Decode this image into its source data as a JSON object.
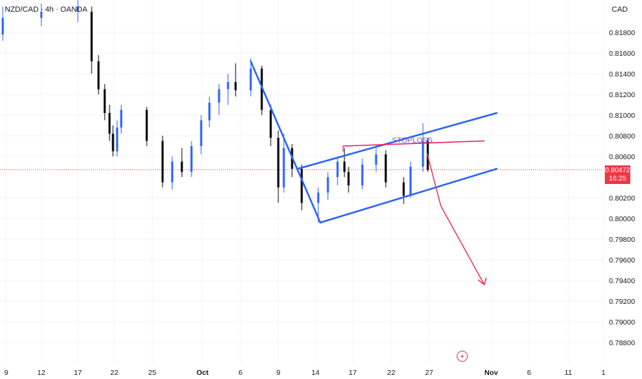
{
  "header": {
    "symbol": "NZD/CAD · 4h · OANDA",
    "currency": "CAD"
  },
  "price_badge": {
    "price": "0.80472",
    "countdown": "16:25"
  },
  "annotation": {
    "stoploss_label": "STOPLOSS"
  },
  "colors": {
    "up": "#2962ff",
    "down": "#000000",
    "channel": "#2962ff",
    "stoploss": "#e91e63",
    "arrow": "#e53950",
    "price_line": "#f23645",
    "grid": "#f0f3fa"
  },
  "icons": {
    "flag": "canada-flag-icon"
  },
  "chart_data": {
    "type": "candlestick",
    "title": "NZD/CAD · 4h · OANDA",
    "y_axis": {
      "ticks": [
        "0.81800",
        "0.81600",
        "0.81400",
        "0.81200",
        "0.81000",
        "0.80800",
        "0.80600",
        "0.80200",
        "0.80000",
        "0.79800",
        "0.79600",
        "0.79400",
        "0.79200",
        "0.79000",
        "0.78800"
      ],
      "range": [
        0.7872,
        0.8212
      ],
      "unit": "CAD"
    },
    "x_axis": {
      "ticks": [
        "9",
        "12",
        "17",
        "22",
        "25",
        "Oct",
        "6",
        "9",
        "14",
        "17",
        "22",
        "27",
        "Nov",
        "6",
        "11",
        "1"
      ]
    },
    "last_price": 0.80472,
    "candles": [
      {
        "x": "09-08",
        "o": 0.8178,
        "h": 0.8205,
        "l": 0.8172,
        "c": 0.8194
      },
      {
        "x": "09-12",
        "o": 0.8194,
        "h": 0.8208,
        "l": 0.8186,
        "c": 0.82
      },
      {
        "x": "09-17",
        "o": 0.82,
        "h": 0.8212,
        "l": 0.819,
        "c": 0.8205
      },
      {
        "x": "09-18",
        "o": 0.82,
        "h": 0.8205,
        "l": 0.814,
        "c": 0.8152
      },
      {
        "x": "09-18b",
        "o": 0.8152,
        "h": 0.8158,
        "l": 0.812,
        "c": 0.8125
      },
      {
        "x": "09-19",
        "o": 0.8125,
        "h": 0.813,
        "l": 0.8095,
        "c": 0.8102
      },
      {
        "x": "09-20",
        "o": 0.8102,
        "h": 0.811,
        "l": 0.8075,
        "c": 0.8082
      },
      {
        "x": "09-21",
        "o": 0.8082,
        "h": 0.809,
        "l": 0.806,
        "c": 0.8065
      },
      {
        "x": "09-22",
        "o": 0.8065,
        "h": 0.8095,
        "l": 0.806,
        "c": 0.8088
      },
      {
        "x": "09-23",
        "o": 0.8088,
        "h": 0.811,
        "l": 0.8082,
        "c": 0.8105
      },
      {
        "x": "09-24",
        "o": 0.8105,
        "h": 0.8108,
        "l": 0.807,
        "c": 0.8075
      },
      {
        "x": "09-25",
        "o": 0.8075,
        "h": 0.808,
        "l": 0.803,
        "c": 0.8035
      },
      {
        "x": "09-26",
        "o": 0.8035,
        "h": 0.806,
        "l": 0.8028,
        "c": 0.8055
      },
      {
        "x": "09-27",
        "o": 0.8055,
        "h": 0.8068,
        "l": 0.804,
        "c": 0.8045
      },
      {
        "x": "09-28",
        "o": 0.8045,
        "h": 0.8075,
        "l": 0.804,
        "c": 0.807
      },
      {
        "x": "09-29",
        "o": 0.807,
        "h": 0.81,
        "l": 0.8062,
        "c": 0.8095
      },
      {
        "x": "09-30",
        "o": 0.8095,
        "h": 0.8118,
        "l": 0.8088,
        "c": 0.8112
      },
      {
        "x": "10-01",
        "o": 0.8112,
        "h": 0.813,
        "l": 0.81,
        "c": 0.8125
      },
      {
        "x": "10-02",
        "o": 0.8125,
        "h": 0.814,
        "l": 0.811,
        "c": 0.8132
      },
      {
        "x": "10-03",
        "o": 0.8132,
        "h": 0.815,
        "l": 0.8118,
        "c": 0.8124
      },
      {
        "x": "10-06",
        "o": 0.8124,
        "h": 0.8155,
        "l": 0.8118,
        "c": 0.8145
      },
      {
        "x": "10-07",
        "o": 0.8145,
        "h": 0.8148,
        "l": 0.81,
        "c": 0.8105
      },
      {
        "x": "10-08",
        "o": 0.8105,
        "h": 0.811,
        "l": 0.807,
        "c": 0.8078
      },
      {
        "x": "10-09",
        "o": 0.8078,
        "h": 0.8085,
        "l": 0.8015,
        "c": 0.803
      },
      {
        "x": "10-09b",
        "o": 0.803,
        "h": 0.8082,
        "l": 0.8025,
        "c": 0.8068
      },
      {
        "x": "10-10",
        "o": 0.8068,
        "h": 0.8072,
        "l": 0.804,
        "c": 0.8048
      },
      {
        "x": "10-11",
        "o": 0.8048,
        "h": 0.8052,
        "l": 0.8008,
        "c": 0.8015
      },
      {
        "x": "10-14",
        "o": 0.8015,
        "h": 0.803,
        "l": 0.7996,
        "c": 0.8025
      },
      {
        "x": "10-15",
        "o": 0.8025,
        "h": 0.8045,
        "l": 0.8018,
        "c": 0.804
      },
      {
        "x": "10-16",
        "o": 0.804,
        "h": 0.806,
        "l": 0.8032,
        "c": 0.8055
      },
      {
        "x": "10-17",
        "o": 0.8055,
        "h": 0.8068,
        "l": 0.804,
        "c": 0.8045
      },
      {
        "x": "10-18",
        "o": 0.8045,
        "h": 0.805,
        "l": 0.8025,
        "c": 0.8032
      },
      {
        "x": "10-21",
        "o": 0.8032,
        "h": 0.8058,
        "l": 0.8028,
        "c": 0.8052
      },
      {
        "x": "10-22",
        "o": 0.8052,
        "h": 0.807,
        "l": 0.8045,
        "c": 0.8062
      },
      {
        "x": "10-23",
        "o": 0.8062,
        "h": 0.8066,
        "l": 0.803,
        "c": 0.8035
      },
      {
        "x": "10-24",
        "o": 0.8035,
        "h": 0.804,
        "l": 0.8014,
        "c": 0.8022
      },
      {
        "x": "10-25",
        "o": 0.8022,
        "h": 0.8055,
        "l": 0.802,
        "c": 0.805
      },
      {
        "x": "10-26",
        "o": 0.805,
        "h": 0.8092,
        "l": 0.8045,
        "c": 0.8075
      },
      {
        "x": "10-27",
        "o": 0.8075,
        "h": 0.8078,
        "l": 0.8045,
        "c": 0.8047
      }
    ],
    "drawings": [
      {
        "type": "trendline",
        "name": "impulse-down-line",
        "points": [
          [
            "10-06",
            0.8152
          ],
          [
            "10-14",
            0.7996
          ]
        ]
      },
      {
        "type": "trendline",
        "name": "channel-upper-line",
        "points": [
          [
            "10-11",
            0.8048
          ],
          [
            "11-02",
            0.8102
          ]
        ]
      },
      {
        "type": "trendline",
        "name": "channel-lower-line",
        "points": [
          [
            "10-14",
            0.7996
          ],
          [
            "11-02",
            0.8048
          ]
        ]
      },
      {
        "type": "trendline",
        "name": "stoploss-line",
        "points": [
          [
            "10-17",
            0.807
          ],
          [
            "11-01",
            0.8075
          ]
        ]
      },
      {
        "type": "arrow",
        "name": "target-arrow",
        "points": [
          [
            "10-27",
            0.8063
          ],
          [
            "10-29",
            0.8012
          ],
          [
            "11-01",
            0.7936
          ]
        ]
      }
    ]
  }
}
